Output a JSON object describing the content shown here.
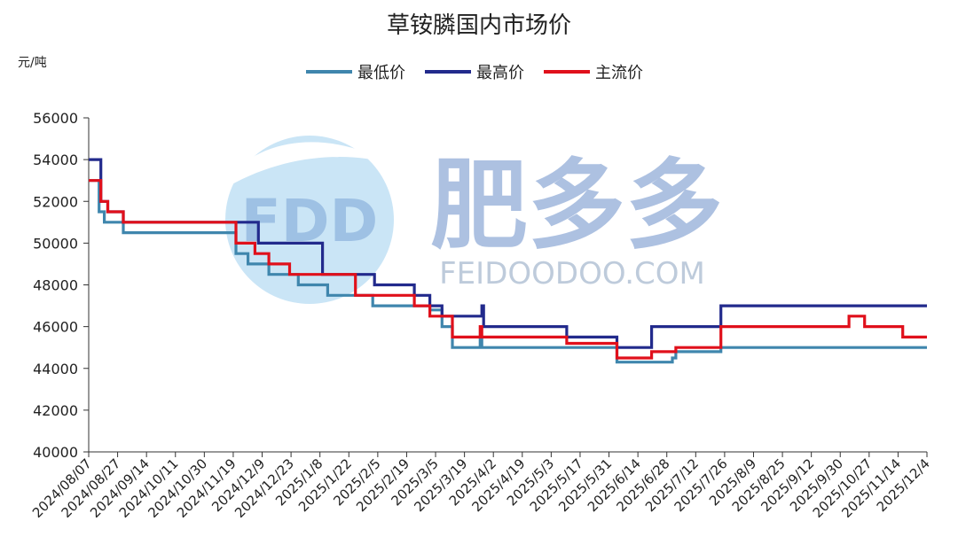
{
  "chart_data": {
    "type": "line",
    "title": "草铵膦国内市场价",
    "ylabel": "元/吨",
    "xlabel": "",
    "ylim": [
      40000,
      56000
    ],
    "yticks": [
      40000,
      42000,
      44000,
      46000,
      48000,
      50000,
      52000,
      54000,
      56000
    ],
    "x_start": "2024/08/07",
    "x_end": "2025/12/04",
    "tick_labels": [
      "2024/08/07",
      "2024/08/27",
      "2024/09/14",
      "2024/10/11",
      "2024/10/30",
      "2024/11/19",
      "2024/12/9",
      "2024/12/23",
      "2025/1/8",
      "2025/1/22",
      "2025/2/5",
      "2025/2/19",
      "2025/3/5",
      "2025/3/19",
      "2025/4/2",
      "2025/4/19",
      "2025/5/3",
      "2025/5/17",
      "2025/5/31",
      "2025/6/14",
      "2025/6/28",
      "2025/7/12",
      "2025/7/26",
      "2025/8/9",
      "2025/8/25",
      "2025/9/12",
      "2025/9/30",
      "2025/10/27",
      "2025/11/14",
      "2025/12/4"
    ],
    "grid": false,
    "legend_position": "top",
    "series": [
      {
        "name": "最低价",
        "color": "#3f86ad",
        "points": [
          [
            "2024/08/07",
            53000
          ],
          [
            "2024/08/13",
            51500
          ],
          [
            "2024/08/16",
            51000
          ],
          [
            "2024/08/27",
            50500
          ],
          [
            "2024/10/31",
            49500
          ],
          [
            "2024/11/07",
            49000
          ],
          [
            "2024/11/19",
            48500
          ],
          [
            "2024/12/06",
            48000
          ],
          [
            "2024/12/23",
            47500
          ],
          [
            "2025/01/18",
            47000
          ],
          [
            "2025/02/20",
            46800
          ],
          [
            "2025/02/27",
            46000
          ],
          [
            "2025/03/05",
            45000
          ],
          [
            "2025/03/21",
            45500
          ],
          [
            "2025/03/22",
            45000
          ],
          [
            "2025/06/08",
            44300
          ],
          [
            "2025/07/10",
            44500
          ],
          [
            "2025/07/12",
            44800
          ],
          [
            "2025/08/07",
            45000
          ],
          [
            "2025/12/04",
            45000
          ]
        ]
      },
      {
        "name": "最高价",
        "color": "#222a8c",
        "points": [
          [
            "2024/08/07",
            54000
          ],
          [
            "2024/08/14",
            52000
          ],
          [
            "2024/08/18",
            51500
          ],
          [
            "2024/08/27",
            51000
          ],
          [
            "2024/11/13",
            50000
          ],
          [
            "2024/12/20",
            48500
          ],
          [
            "2025/01/19",
            48000
          ],
          [
            "2025/02/11",
            47500
          ],
          [
            "2025/02/20",
            47000
          ],
          [
            "2025/02/27",
            46500
          ],
          [
            "2025/03/22",
            47000
          ],
          [
            "2025/03/23",
            46000
          ],
          [
            "2025/05/10",
            45500
          ],
          [
            "2025/06/08",
            45000
          ],
          [
            "2025/06/28",
            46000
          ],
          [
            "2025/08/07",
            47000
          ],
          [
            "2025/12/04",
            47000
          ]
        ]
      },
      {
        "name": "主流价",
        "color": "#e0101b",
        "points": [
          [
            "2024/08/07",
            53000
          ],
          [
            "2024/08/14",
            52000
          ],
          [
            "2024/08/18",
            51500
          ],
          [
            "2024/08/27",
            51000
          ],
          [
            "2024/10/31",
            50000
          ],
          [
            "2024/11/11",
            49500
          ],
          [
            "2024/11/19",
            49000
          ],
          [
            "2024/12/01",
            48500
          ],
          [
            "2025/01/08",
            47500
          ],
          [
            "2025/02/11",
            47000
          ],
          [
            "2025/02/20",
            46500
          ],
          [
            "2025/03/05",
            45500
          ],
          [
            "2025/03/21",
            46000
          ],
          [
            "2025/03/22",
            45500
          ],
          [
            "2025/05/10",
            45200
          ],
          [
            "2025/06/08",
            44500
          ],
          [
            "2025/06/28",
            44800
          ],
          [
            "2025/07/12",
            45000
          ],
          [
            "2025/08/07",
            46000
          ],
          [
            "2025/10/20",
            46500
          ],
          [
            "2025/10/29",
            46000
          ],
          [
            "2025/11/20",
            45500
          ],
          [
            "2025/12/04",
            45500
          ]
        ]
      }
    ]
  },
  "watermark": {
    "logo_text": "FDD",
    "brand_text": "肥多多",
    "url_text": "FEIDOODOO.COM"
  }
}
